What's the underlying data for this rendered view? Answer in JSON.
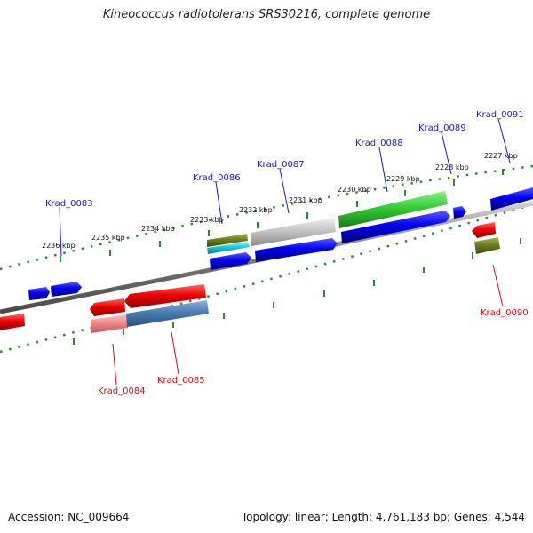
{
  "title": "Kineococcus radiotolerans SRS30216, complete genome",
  "footer": {
    "accession": "Accession: NC_009664",
    "summary": "Topology: linear; Length: 4,761,183 bp; Genes: 4,544"
  },
  "colors": {
    "backbone": "#7a7a7a",
    "ticks": "#2f8a2f",
    "forward_label": "#1a1ac8",
    "reverse_label": "#cc1111",
    "forward_gene": "#0a0aee",
    "reverse_gene": "#ee0a0a"
  },
  "scale": {
    "ticks": [
      {
        "label": "2236 kbp"
      },
      {
        "label": "2235 kbp"
      },
      {
        "label": "2234 kbp"
      },
      {
        "label": "2233 kbp"
      },
      {
        "label": "2232 kbp"
      },
      {
        "label": "2231 kbp"
      },
      {
        "label": "2230 kbp"
      },
      {
        "label": "2229 kbp"
      },
      {
        "label": "2228 kbp"
      },
      {
        "label": "2227 kbp"
      }
    ]
  },
  "gene_labels": {
    "forward": [
      "Krad_0083",
      "Krad_0086",
      "Krad_0087",
      "Krad_0088",
      "Krad_0089",
      "Krad_0091"
    ],
    "reverse": [
      "Krad_0084",
      "Krad_0085",
      "Krad_0090"
    ]
  }
}
